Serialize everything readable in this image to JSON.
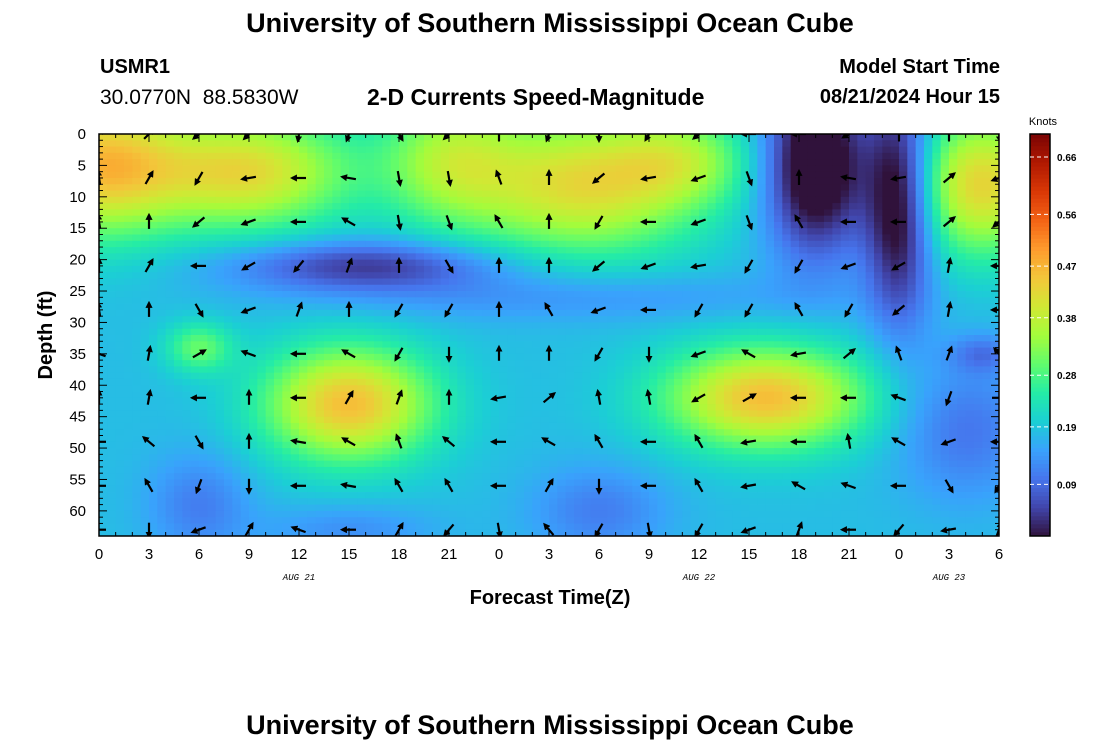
{
  "page": {
    "title_top": "University of Southern Mississippi Ocean Cube",
    "station": "USMR1",
    "coordinates": "30.0770N  88.5830W",
    "subtitle": "2-D Currents Speed-Magnitude",
    "model_start_label": "Model Start Time",
    "model_start_value": "08/21/2024 Hour 15",
    "title_bottom": "University of Southern Mississippi Ocean Cube"
  },
  "chart_data": {
    "type": "heatmap",
    "xlabel": "Forecast Time(Z)",
    "ylabel": "Depth (ft)",
    "colorbar_label": "Knots",
    "x_tick_labels": [
      "0",
      "3",
      "6",
      "9",
      "12",
      "15",
      "18",
      "21",
      "0",
      "3",
      "6",
      "9",
      "12",
      "15",
      "18",
      "21",
      "0",
      "3",
      "6"
    ],
    "day_labels": [
      {
        "text": "AUG 21",
        "hour": 12
      },
      {
        "text": "AUG 22",
        "hour": 36
      },
      {
        "text": "AUG 23",
        "hour": 51
      }
    ],
    "y_tick_labels": [
      "0",
      "5",
      "10",
      "15",
      "20",
      "25",
      "30",
      "35",
      "40",
      "45",
      "50",
      "55",
      "60"
    ],
    "xlim": [
      0,
      54
    ],
    "ylim": [
      0,
      64
    ],
    "clim": [
      0.0,
      0.7
    ],
    "colorbar_ticks": [
      "0.09",
      "0.19",
      "0.28",
      "0.38",
      "0.47",
      "0.56",
      "0.66"
    ],
    "colorbar_tick_values": [
      0.09,
      0.19,
      0.28,
      0.38,
      0.47,
      0.56,
      0.66
    ],
    "colormap": [
      "#30123b",
      "#4145ab",
      "#4675ed",
      "#39a2fc",
      "#1bcfd4",
      "#24eca6",
      "#61fc6c",
      "#a4fc3b",
      "#d1e834",
      "#f3c63a",
      "#fe9b2d",
      "#f36315",
      "#d93806",
      "#b11901",
      "#7a0403"
    ],
    "features": [
      {
        "x": 0,
        "y": 5,
        "sx": 5,
        "sy": 11,
        "v": 0.27
      },
      {
        "x": 9,
        "y": 6,
        "sx": 6,
        "sy": 9,
        "v": 0.24
      },
      {
        "x": 21,
        "y": 4,
        "sx": 4,
        "sy": 10,
        "v": 0.15
      },
      {
        "x": 29,
        "y": 8,
        "sx": 7,
        "sy": 11,
        "v": 0.24
      },
      {
        "x": 35,
        "y": 4,
        "sx": 4,
        "sy": 7,
        "v": 0.12
      },
      {
        "x": 43,
        "y": 5,
        "sx": 3,
        "sy": 14,
        "v": -0.25
      },
      {
        "x": 48,
        "y": 11,
        "sx": 2,
        "sy": 18,
        "v": -0.22
      },
      {
        "x": 53,
        "y": 8,
        "sx": 4,
        "sy": 11,
        "v": 0.25
      },
      {
        "x": 16,
        "y": 21,
        "sx": 8,
        "sy": 4,
        "v": -0.14
      },
      {
        "x": 28,
        "y": 26,
        "sx": 14,
        "sy": 4,
        "v": -0.05
      },
      {
        "x": 6,
        "y": 34,
        "sx": 2,
        "sy": 4,
        "v": 0.12
      },
      {
        "x": 15,
        "y": 43,
        "sx": 5,
        "sy": 9,
        "v": 0.28
      },
      {
        "x": 15,
        "y": 63,
        "sx": 5,
        "sy": 4,
        "v": -0.05
      },
      {
        "x": 40,
        "y": 42,
        "sx": 6,
        "sy": 8,
        "v": 0.28
      },
      {
        "x": 30,
        "y": 60,
        "sx": 4,
        "sy": 7,
        "v": -0.07
      },
      {
        "x": 6,
        "y": 59,
        "sx": 3,
        "sy": 8,
        "v": -0.07
      },
      {
        "x": 52,
        "y": 47,
        "sx": 4,
        "sy": 11,
        "v": -0.08
      },
      {
        "x": 53,
        "y": 35,
        "sx": 2,
        "sy": 3,
        "v": -0.07
      }
    ],
    "base_value": 0.18,
    "arrow_angles_deg": [
      [
        45,
        45,
        220,
        225,
        260,
        250,
        300,
        225,
        90,
        250,
        270,
        240,
        220,
        180,
        180,
        210,
        90,
        90,
        280
      ],
      [
        100,
        60,
        240,
        190,
        180,
        170,
        280,
        280,
        110,
        90,
        220,
        190,
        200,
        290,
        90,
        170,
        190,
        40,
        200
      ],
      [
        100,
        90,
        220,
        200,
        180,
        150,
        280,
        290,
        120,
        90,
        240,
        180,
        200,
        290,
        120,
        180,
        180,
        40,
        220
      ],
      [
        90,
        60,
        180,
        210,
        230,
        70,
        90,
        300,
        90,
        90,
        220,
        200,
        190,
        240,
        240,
        200,
        210,
        80,
        180
      ],
      [
        100,
        90,
        300,
        200,
        70,
        90,
        240,
        240,
        90,
        120,
        200,
        180,
        240,
        240,
        120,
        240,
        220,
        80,
        180
      ],
      [
        160,
        80,
        30,
        160,
        180,
        150,
        240,
        270,
        90,
        90,
        240,
        270,
        200,
        150,
        190,
        40,
        110,
        70,
        130
      ],
      [
        90,
        80,
        180,
        90,
        180,
        60,
        70,
        90,
        190,
        40,
        100,
        100,
        210,
        30,
        180,
        180,
        160,
        250,
        0
      ],
      [
        180,
        140,
        300,
        90,
        170,
        150,
        110,
        140,
        180,
        150,
        120,
        180,
        120,
        190,
        180,
        100,
        150,
        200,
        180
      ],
      [
        180,
        120,
        250,
        270,
        180,
        170,
        120,
        120,
        180,
        60,
        270,
        180,
        120,
        190,
        150,
        160,
        180,
        300,
        240
      ],
      [
        180,
        270,
        200,
        60,
        160,
        180,
        60,
        230,
        280,
        130,
        240,
        280,
        240,
        200,
        70,
        180,
        230,
        190,
        70
      ]
    ]
  }
}
